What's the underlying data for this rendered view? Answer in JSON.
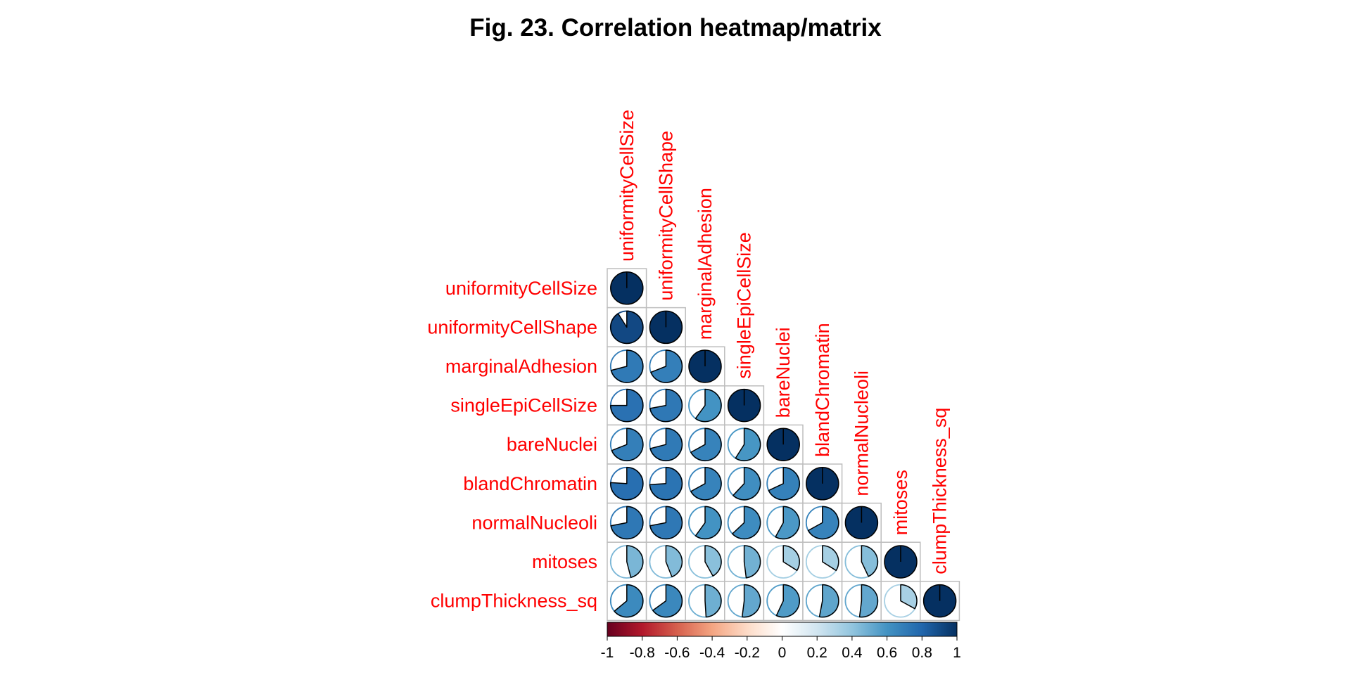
{
  "chart_data": {
    "type": "heatmap",
    "title": "Fig. 23. Correlation heatmap/matrix",
    "variables": [
      "uniformityCellSize",
      "uniformityCellShape",
      "marginalAdhesion",
      "singleEpiCellSize",
      "bareNuclei",
      "blandChromatin",
      "normalNucleoli",
      "mitoses",
      "clumpThickness_sq"
    ],
    "matrix_shape": "lower-triangular",
    "glyph": "pie",
    "values": [
      [
        1.0
      ],
      [
        0.91,
        1.0
      ],
      [
        0.71,
        0.69,
        1.0
      ],
      [
        0.75,
        0.72,
        0.6,
        1.0
      ],
      [
        0.69,
        0.71,
        0.67,
        0.59,
        1.0
      ],
      [
        0.76,
        0.74,
        0.67,
        0.62,
        0.68,
        1.0
      ],
      [
        0.72,
        0.72,
        0.6,
        0.63,
        0.58,
        0.67,
        1.0
      ],
      [
        0.46,
        0.44,
        0.42,
        0.48,
        0.34,
        0.34,
        0.43,
        1.0
      ],
      [
        0.64,
        0.65,
        0.49,
        0.52,
        0.57,
        0.53,
        0.52,
        0.33,
        1.0
      ]
    ],
    "label_color": "#ff0000",
    "colorbar": {
      "range": [
        -1,
        1
      ],
      "ticks": [
        "-1",
        "-0.8",
        "-0.6",
        "-0.4",
        "-0.2",
        "0",
        "0.2",
        "0.4",
        "0.6",
        "0.8",
        "1"
      ],
      "colors": [
        "#67001f",
        "#b2182b",
        "#d6604d",
        "#f4a582",
        "#fddbc7",
        "#ffffff",
        "#d1e5f0",
        "#92c5de",
        "#4393c3",
        "#2166ac",
        "#053061"
      ]
    }
  }
}
